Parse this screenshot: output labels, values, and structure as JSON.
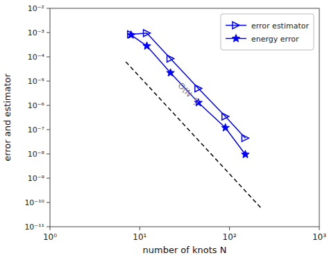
{
  "chart_data": {
    "type": "line",
    "x_label": "number of knots N",
    "y_label": "error and estimator",
    "log": true,
    "grid": false,
    "legend": "upper right",
    "xlim": [
      1,
      1000
    ],
    "xticks": [
      {
        "value": 1,
        "label": "10⁰"
      },
      {
        "value": 10,
        "label": "10¹"
      },
      {
        "value": 100,
        "label": "10²"
      },
      {
        "value": 1000,
        "label": "10³"
      }
    ],
    "ylim": [
      1e-11,
      0.01
    ],
    "yticks": [
      {
        "value": 1e-11,
        "label": "10⁻¹¹"
      },
      {
        "value": 1e-10,
        "label": "10⁻¹⁰"
      },
      {
        "value": 1e-09,
        "label": "10⁻⁹"
      },
      {
        "value": 1e-08,
        "label": "10⁻⁸"
      },
      {
        "value": 1e-07,
        "label": "10⁻⁷"
      },
      {
        "value": 1e-06,
        "label": "10⁻⁶"
      },
      {
        "value": 1e-05,
        "label": "10⁻⁵"
      },
      {
        "value": 0.0001,
        "label": "10⁻⁴"
      },
      {
        "value": 0.001,
        "label": "10⁻³"
      },
      {
        "value": 0.01,
        "label": "10⁻²"
      }
    ],
    "series": [
      {
        "color": "#000000",
        "line_style": "dashed",
        "x": [
          7,
          230
        ],
        "values": [
          6.24739692e-05,
          5.3601867e-11
        ]
      },
      {
        "name": "error estimator",
        "color": "#0000FF",
        "marker": "triangle-right",
        "line_style": "solid",
        "x": [
          8,
          12,
          22,
          45,
          90,
          150
        ],
        "values": [
          0.00085,
          0.00095,
          8.5e-05,
          5e-06,
          3.5e-07,
          4.5e-08
        ]
      },
      {
        "name": "energy error",
        "color": "#0000FF",
        "marker": "star",
        "line_style": "solid",
        "x": [
          8,
          12,
          22,
          45,
          90,
          150
        ],
        "values": [
          0.0008,
          0.00028,
          2.2e-05,
          1.3e-06,
          1.2e-07,
          9.5e-09
        ]
      }
    ],
    "annotations": [
      {
        "text": "O(N⁻⁴)",
        "x": 35,
        "y": 3e-06,
        "color": "#808080"
      }
    ]
  }
}
